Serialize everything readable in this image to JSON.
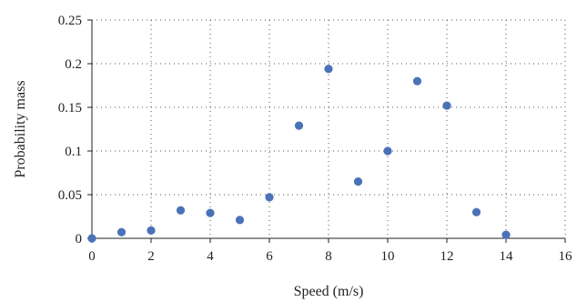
{
  "chart_data": {
    "type": "scatter",
    "title": "",
    "xlabel": "Speed (m/s)",
    "ylabel": "Probability mass",
    "xlim": [
      0,
      16
    ],
    "ylim": [
      0,
      0.25
    ],
    "xticks": [
      0,
      2,
      4,
      6,
      8,
      10,
      12,
      14,
      16
    ],
    "yticks": [
      0,
      0.05,
      0.1,
      0.15,
      0.2,
      0.25
    ],
    "xtick_labels": [
      "0",
      "2",
      "4",
      "6",
      "8",
      "10",
      "12",
      "14",
      "16"
    ],
    "ytick_labels": [
      "0",
      "0.05",
      "0.1",
      "0.15",
      "0.2",
      "0.25"
    ],
    "grid": true,
    "series": [
      {
        "color": "#4a72b8",
        "x": [
          0,
          1,
          2,
          3,
          4,
          5,
          6,
          7,
          8,
          9,
          10,
          11,
          12,
          13,
          14
        ],
        "y": [
          0.0,
          0.007,
          0.009,
          0.032,
          0.029,
          0.021,
          0.047,
          0.129,
          0.194,
          0.065,
          0.1,
          0.18,
          0.152,
          0.03,
          0.004
        ]
      }
    ]
  }
}
